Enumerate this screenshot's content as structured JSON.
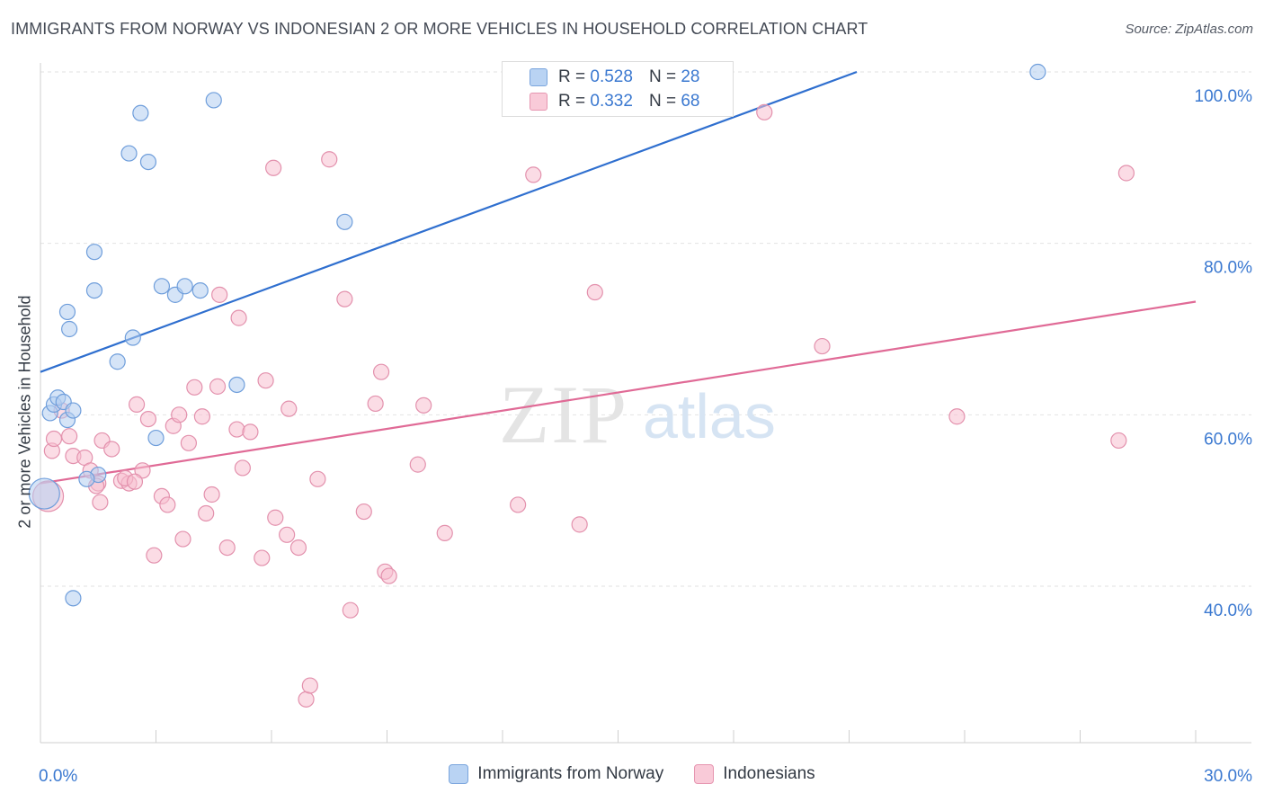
{
  "title": "IMMIGRANTS FROM NORWAY VS INDONESIAN 2 OR MORE VEHICLES IN HOUSEHOLD CORRELATION CHART",
  "source": "Source: ZipAtlas.com",
  "watermark": {
    "zip": "ZIP",
    "atlas": "atlas"
  },
  "stats": {
    "norway": {
      "r_label": "R =",
      "r": "0.528",
      "n_label": "N =",
      "n": "28",
      "color": "#b9d3f3"
    },
    "indonesians": {
      "r_label": "R =",
      "r": "0.332",
      "n_label": "N =",
      "n": "68",
      "color": "#f9cad8"
    }
  },
  "legend": {
    "norway": "Immigrants from Norway",
    "indonesians": "Indonesians"
  },
  "colors": {
    "blue_line": "#2f6fcf",
    "pink_line": "#e06a96",
    "blue_fill": "#b9d3f3",
    "pink_fill": "#f9cad8",
    "tick_text": "#3a78d0"
  },
  "chart_data": {
    "type": "scatter",
    "title": "IMMIGRANTS FROM NORWAY VS INDONESIAN 2 OR MORE VEHICLES IN HOUSEHOLD CORRELATION CHART",
    "xlabel": "",
    "ylabel": "2 or more Vehicles in Household",
    "xlim": [
      0,
      30
    ],
    "ylim": [
      22,
      102
    ],
    "x_tick_labels": [
      {
        "value": 0,
        "label": "0.0%"
      },
      {
        "value": 30,
        "label": "30.0%"
      }
    ],
    "y_tick_labels": [
      {
        "value": 40,
        "label": "40.0%"
      },
      {
        "value": 60,
        "label": "60.0%"
      },
      {
        "value": 80,
        "label": "80.0%"
      },
      {
        "value": 100,
        "label": "100.0%"
      }
    ],
    "series": [
      {
        "name": "Immigrants from Norway",
        "trend": {
          "x": [
            0,
            21.2
          ],
          "y": [
            65.0,
            100.0
          ]
        },
        "points": [
          {
            "x": 0.25,
            "y": 60.2
          },
          {
            "x": 0.35,
            "y": 61.2
          },
          {
            "x": 0.45,
            "y": 62.0
          },
          {
            "x": 0.6,
            "y": 61.5
          },
          {
            "x": 0.7,
            "y": 59.4
          },
          {
            "x": 0.85,
            "y": 60.5
          },
          {
            "x": 0.1,
            "y": 50.8,
            "big": true
          },
          {
            "x": 0.7,
            "y": 72.0
          },
          {
            "x": 0.75,
            "y": 70.0
          },
          {
            "x": 1.4,
            "y": 74.5
          },
          {
            "x": 1.4,
            "y": 79.0
          },
          {
            "x": 1.5,
            "y": 53.0
          },
          {
            "x": 2.0,
            "y": 66.2
          },
          {
            "x": 2.4,
            "y": 69.0
          },
          {
            "x": 2.6,
            "y": 95.2
          },
          {
            "x": 2.3,
            "y": 90.5
          },
          {
            "x": 2.8,
            "y": 89.5
          },
          {
            "x": 3.0,
            "y": 57.3
          },
          {
            "x": 3.15,
            "y": 75.0
          },
          {
            "x": 3.5,
            "y": 74.0
          },
          {
            "x": 3.75,
            "y": 75.0
          },
          {
            "x": 4.15,
            "y": 74.5
          },
          {
            "x": 4.5,
            "y": 96.7
          },
          {
            "x": 5.1,
            "y": 63.5
          },
          {
            "x": 7.9,
            "y": 82.5
          },
          {
            "x": 0.85,
            "y": 38.6
          },
          {
            "x": 25.9,
            "y": 100.0
          },
          {
            "x": 1.2,
            "y": 52.5
          }
        ]
      },
      {
        "name": "Indonesians",
        "trend": {
          "x": [
            0,
            30
          ],
          "y": [
            52.0,
            73.2
          ]
        },
        "points": [
          {
            "x": 0.3,
            "y": 55.8
          },
          {
            "x": 0.35,
            "y": 57.2
          },
          {
            "x": 0.55,
            "y": 60.5
          },
          {
            "x": 0.75,
            "y": 57.5
          },
          {
            "x": 0.85,
            "y": 55.2
          },
          {
            "x": 1.15,
            "y": 55.0
          },
          {
            "x": 1.3,
            "y": 53.5
          },
          {
            "x": 1.5,
            "y": 52.0
          },
          {
            "x": 1.55,
            "y": 49.8
          },
          {
            "x": 1.6,
            "y": 57.0
          },
          {
            "x": 1.85,
            "y": 56.0
          },
          {
            "x": 2.1,
            "y": 52.3
          },
          {
            "x": 2.3,
            "y": 52.0
          },
          {
            "x": 2.5,
            "y": 61.2
          },
          {
            "x": 2.65,
            "y": 53.5
          },
          {
            "x": 2.8,
            "y": 59.5
          },
          {
            "x": 2.95,
            "y": 43.6
          },
          {
            "x": 3.15,
            "y": 50.5
          },
          {
            "x": 3.3,
            "y": 49.5
          },
          {
            "x": 3.45,
            "y": 58.7
          },
          {
            "x": 3.6,
            "y": 60.0
          },
          {
            "x": 3.7,
            "y": 45.5
          },
          {
            "x": 3.85,
            "y": 56.7
          },
          {
            "x": 4.0,
            "y": 63.2
          },
          {
            "x": 4.2,
            "y": 59.8
          },
          {
            "x": 4.3,
            "y": 48.5
          },
          {
            "x": 4.45,
            "y": 50.7
          },
          {
            "x": 4.6,
            "y": 63.3
          },
          {
            "x": 4.65,
            "y": 74.0
          },
          {
            "x": 4.85,
            "y": 44.5
          },
          {
            "x": 5.1,
            "y": 58.3
          },
          {
            "x": 5.15,
            "y": 71.3
          },
          {
            "x": 5.25,
            "y": 53.8
          },
          {
            "x": 5.45,
            "y": 58.0
          },
          {
            "x": 5.75,
            "y": 43.3
          },
          {
            "x": 5.85,
            "y": 64.0
          },
          {
            "x": 6.05,
            "y": 88.8
          },
          {
            "x": 6.1,
            "y": 48.0
          },
          {
            "x": 6.4,
            "y": 46.0
          },
          {
            "x": 6.45,
            "y": 60.7
          },
          {
            "x": 6.7,
            "y": 44.5
          },
          {
            "x": 6.9,
            "y": 26.8
          },
          {
            "x": 7.0,
            "y": 28.4
          },
          {
            "x": 7.2,
            "y": 52.5
          },
          {
            "x": 7.5,
            "y": 89.8
          },
          {
            "x": 7.9,
            "y": 73.5
          },
          {
            "x": 8.05,
            "y": 37.2
          },
          {
            "x": 8.4,
            "y": 48.7
          },
          {
            "x": 8.7,
            "y": 61.3
          },
          {
            "x": 8.85,
            "y": 65.0
          },
          {
            "x": 8.95,
            "y": 41.7
          },
          {
            "x": 9.05,
            "y": 41.2
          },
          {
            "x": 9.8,
            "y": 54.2
          },
          {
            "x": 9.95,
            "y": 61.1
          },
          {
            "x": 10.5,
            "y": 46.2
          },
          {
            "x": 12.4,
            "y": 49.5
          },
          {
            "x": 12.8,
            "y": 88.0
          },
          {
            "x": 14.0,
            "y": 47.2
          },
          {
            "x": 14.4,
            "y": 74.3
          },
          {
            "x": 18.8,
            "y": 95.3
          },
          {
            "x": 20.3,
            "y": 68.0
          },
          {
            "x": 23.8,
            "y": 59.8
          },
          {
            "x": 28.0,
            "y": 57.0
          },
          {
            "x": 28.2,
            "y": 88.2
          },
          {
            "x": 2.2,
            "y": 52.6
          },
          {
            "x": 1.45,
            "y": 51.7
          },
          {
            "x": 2.45,
            "y": 52.2
          },
          {
            "x": 0.2,
            "y": 50.5,
            "big": true
          }
        ]
      }
    ]
  }
}
